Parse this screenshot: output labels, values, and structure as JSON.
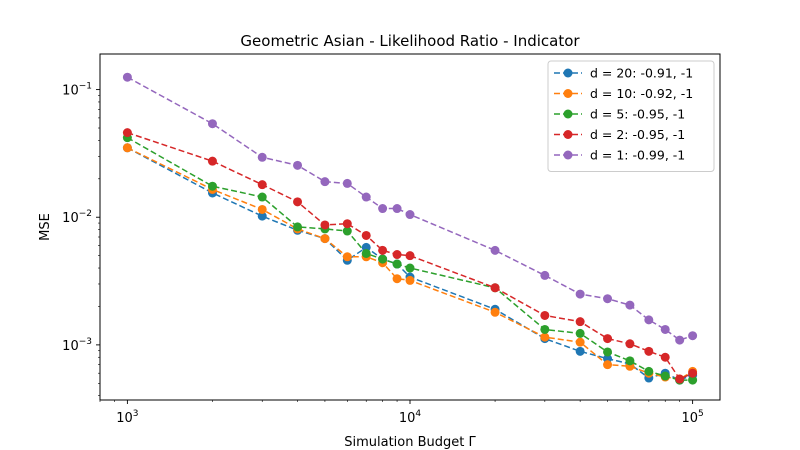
{
  "chart_data": {
    "type": "line",
    "title": "Geometric Asian - Likelihood Ratio - Indicator",
    "xlabel": "Simulation Budget Γ",
    "ylabel": "MSE",
    "xscale": "log",
    "yscale": "log",
    "xlim": [
      800,
      125000
    ],
    "ylim": [
      0.00037,
      0.19
    ],
    "grid": false,
    "legend_position": "top-right",
    "x_ticks": [
      {
        "value": 1000,
        "base": "10",
        "exp": "3"
      },
      {
        "value": 10000,
        "base": "10",
        "exp": "4"
      },
      {
        "value": 100000,
        "base": "10",
        "exp": "5"
      }
    ],
    "y_ticks": [
      {
        "value": 0.001,
        "base": "10",
        "exp": "−3"
      },
      {
        "value": 0.01,
        "base": "10",
        "exp": "−2"
      },
      {
        "value": 0.1,
        "base": "10",
        "exp": "−1"
      }
    ],
    "x": [
      1000,
      2000,
      3000,
      4000,
      5000,
      6000,
      7000,
      8000,
      9000,
      10000,
      20000,
      30000,
      40000,
      50000,
      60000,
      70000,
      80000,
      90000,
      100000
    ],
    "series": [
      {
        "name": "d = 20: -0.91, -1",
        "color": "#1f77b4",
        "values": [
          0.035,
          0.0155,
          0.0102,
          0.0079,
          0.0068,
          0.0046,
          0.0058,
          0.0047,
          0.0043,
          0.0034,
          0.0019,
          0.00112,
          0.00089,
          0.00078,
          0.00071,
          0.00055,
          0.0006,
          0.00053,
          0.00058
        ]
      },
      {
        "name": "d = 10: -0.92, -1",
        "color": "#ff7f0e",
        "values": [
          0.035,
          0.0165,
          0.0115,
          0.0081,
          0.0068,
          0.0049,
          0.0049,
          0.0044,
          0.0033,
          0.0032,
          0.0018,
          0.00115,
          0.00105,
          0.0007,
          0.00068,
          0.0006,
          0.00056,
          0.00054,
          0.00062
        ]
      },
      {
        "name": "d = 5: -0.95, -1",
        "color": "#2ca02c",
        "values": [
          0.042,
          0.0175,
          0.0144,
          0.0084,
          0.0081,
          0.0078,
          0.0052,
          0.0047,
          0.0043,
          0.004,
          0.0028,
          0.00132,
          0.00123,
          0.00088,
          0.00075,
          0.00062,
          0.00057,
          0.00053,
          0.00053
        ]
      },
      {
        "name": "d = 2: -0.95, -1",
        "color": "#d62728",
        "values": [
          0.046,
          0.0275,
          0.018,
          0.0132,
          0.0087,
          0.0089,
          0.0072,
          0.0055,
          0.0051,
          0.005,
          0.0028,
          0.0017,
          0.00152,
          0.00112,
          0.00102,
          0.00089,
          0.0008,
          0.00054,
          0.0006
        ]
      },
      {
        "name": "d = 1: -0.99, -1",
        "color": "#9467bd",
        "values": [
          0.125,
          0.054,
          0.0295,
          0.0255,
          0.019,
          0.0184,
          0.0144,
          0.0117,
          0.0117,
          0.0105,
          0.0055,
          0.0035,
          0.0025,
          0.0023,
          0.00205,
          0.00157,
          0.00132,
          0.00109,
          0.00118
        ]
      }
    ]
  }
}
